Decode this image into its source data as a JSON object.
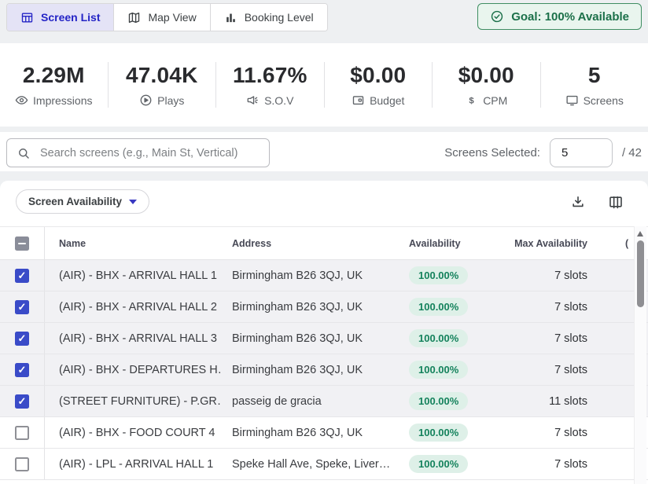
{
  "tabs": [
    {
      "label": "Screen List",
      "icon": "table-icon",
      "active": true
    },
    {
      "label": "Map View",
      "icon": "map-icon",
      "active": false
    },
    {
      "label": "Booking Level",
      "icon": "bar-chart-icon",
      "active": false
    }
  ],
  "goal_badge": {
    "label": "Goal: 100% Available",
    "icon": "check-circle-icon"
  },
  "stats": [
    {
      "value": "2.29M",
      "label": "Impressions",
      "icon": "eye-icon"
    },
    {
      "value": "47.04K",
      "label": "Plays",
      "icon": "play-circle-icon"
    },
    {
      "value": "11.67%",
      "label": "S.O.V",
      "icon": "megaphone-icon"
    },
    {
      "value": "$0.00",
      "label": "Budget",
      "icon": "wallet-icon"
    },
    {
      "value": "$0.00",
      "label": "CPM",
      "icon": "dollar-icon"
    },
    {
      "value": "5",
      "label": "Screens",
      "icon": "monitor-icon"
    }
  ],
  "search": {
    "placeholder": "Search screens (e.g., Main St, Vertical)",
    "icon": "search-icon"
  },
  "screens_selected": {
    "label": "Screens Selected:",
    "value": "5",
    "total_suffix": "/ 42"
  },
  "toolbar": {
    "filter_label": "Screen Availability",
    "icons": [
      "download-icon",
      "columns-icon"
    ]
  },
  "table": {
    "headers": {
      "name": "Name",
      "address": "Address",
      "availability": "Availability",
      "max_availability": "Max Availability",
      "partial": "("
    },
    "rows": [
      {
        "name": "(AIR) - BHX - ARRIVAL HALL 1",
        "address": "Birmingham B26 3QJ, UK",
        "availability": "100.00%",
        "max_availability": "7 slots",
        "selected": true
      },
      {
        "name": "(AIR) - BHX - ARRIVAL HALL 2",
        "address": "Birmingham B26 3QJ, UK",
        "availability": "100.00%",
        "max_availability": "7 slots",
        "selected": true
      },
      {
        "name": "(AIR) - BHX - ARRIVAL HALL 3",
        "address": "Birmingham B26 3QJ, UK",
        "availability": "100.00%",
        "max_availability": "7 slots",
        "selected": true
      },
      {
        "name": "(AIR) - BHX - DEPARTURES H…",
        "address": "Birmingham B26 3QJ, UK",
        "availability": "100.00%",
        "max_availability": "7 slots",
        "selected": true
      },
      {
        "name": "(STREET FURNITURE) - P.GR…",
        "address": "passeig de gracia",
        "availability": "100.00%",
        "max_availability": "11 slots",
        "selected": true
      },
      {
        "name": "(AIR) - BHX - FOOD COURT 4",
        "address": "Birmingham B26 3QJ, UK",
        "availability": "100.00%",
        "max_availability": "7 slots",
        "selected": false
      },
      {
        "name": "(AIR) - LPL - ARRIVAL HALL 1",
        "address": "Speke Hall Ave, Speke, Liver…",
        "availability": "100.00%",
        "max_availability": "7 slots",
        "selected": false
      }
    ]
  },
  "colors": {
    "accent_indigo": "#2424c6",
    "checkbox_blue": "#3a4bc8",
    "goal_green": "#1b7049",
    "goal_bg": "#e9f5ee",
    "badge_bg": "#def0e8",
    "badge_text": "#14825c",
    "selected_row_bg": "#f1f1f4",
    "page_bg": "#eef0f2"
  }
}
